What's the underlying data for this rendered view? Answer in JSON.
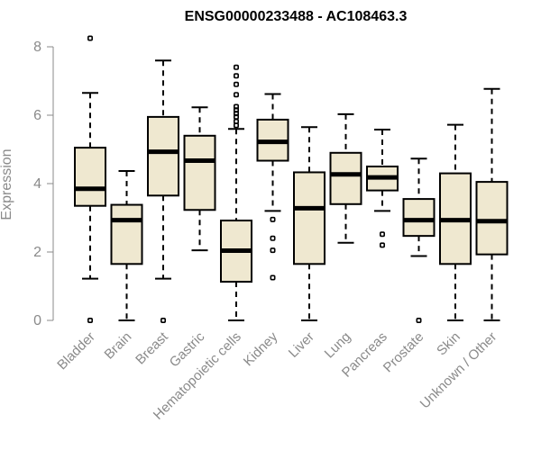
{
  "chart_data": {
    "type": "boxplot",
    "title": "ENSG00000233488 - AC108463.3",
    "ylabel": "Expression",
    "ylim": [
      0,
      8
    ],
    "yticks": [
      0,
      2,
      4,
      6,
      8
    ],
    "box_color": "#efe8d0",
    "categories": [
      "Bladder",
      "Brain",
      "Breast",
      "Gastric",
      "Hematopoietic cells",
      "Kidney",
      "Liver",
      "Lung",
      "Pancreas",
      "Prostate",
      "Skin",
      "Unknown / Other"
    ],
    "boxes": [
      {
        "whisker_low": 1.22,
        "q1": 3.35,
        "median": 3.85,
        "q3": 5.05,
        "whisker_high": 6.65,
        "outliers": [
          0.0,
          8.25
        ]
      },
      {
        "whisker_low": 0.0,
        "q1": 1.65,
        "median": 2.93,
        "q3": 3.38,
        "whisker_high": 4.37,
        "outliers": []
      },
      {
        "whisker_low": 1.22,
        "q1": 3.65,
        "median": 4.93,
        "q3": 5.95,
        "whisker_high": 7.6,
        "outliers": [
          0.0
        ]
      },
      {
        "whisker_low": 2.05,
        "q1": 3.23,
        "median": 4.67,
        "q3": 5.4,
        "whisker_high": 6.23,
        "outliers": []
      },
      {
        "whisker_low": 0.0,
        "q1": 1.13,
        "median": 2.04,
        "q3": 2.92,
        "whisker_high": 5.6,
        "outliers": [
          5.7,
          5.82,
          5.95,
          6.05,
          6.15,
          6.25,
          6.6,
          6.9,
          7.15,
          7.4
        ]
      },
      {
        "whisker_low": 3.2,
        "q1": 4.67,
        "median": 5.22,
        "q3": 5.87,
        "whisker_high": 6.62,
        "outliers": [
          1.25,
          2.05,
          2.4,
          2.95
        ]
      },
      {
        "whisker_low": 0.0,
        "q1": 1.65,
        "median": 3.28,
        "q3": 4.33,
        "whisker_high": 5.65,
        "outliers": []
      },
      {
        "whisker_low": 2.27,
        "q1": 3.4,
        "median": 4.27,
        "q3": 4.9,
        "whisker_high": 6.03,
        "outliers": []
      },
      {
        "whisker_low": 3.2,
        "q1": 3.8,
        "median": 4.18,
        "q3": 4.5,
        "whisker_high": 5.58,
        "outliers": [
          2.2,
          2.52
        ]
      },
      {
        "whisker_low": 1.88,
        "q1": 2.47,
        "median": 2.93,
        "q3": 3.55,
        "whisker_high": 4.73,
        "outliers": [
          0.0
        ]
      },
      {
        "whisker_low": 0.0,
        "q1": 1.65,
        "median": 2.93,
        "q3": 4.3,
        "whisker_high": 5.72,
        "outliers": []
      },
      {
        "whisker_low": 0.0,
        "q1": 1.93,
        "median": 2.9,
        "q3": 4.05,
        "whisker_high": 6.77,
        "outliers": []
      }
    ]
  }
}
